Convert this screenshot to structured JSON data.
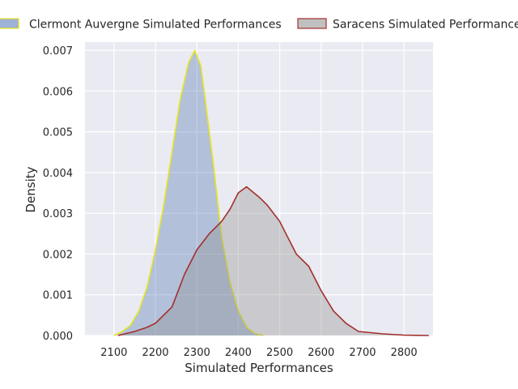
{
  "chart_data": {
    "type": "area",
    "title": "",
    "xlabel": "Simulated Performances",
    "ylabel": "Density",
    "xlim": [
      2030,
      2870
    ],
    "ylim": [
      0,
      0.0072
    ],
    "x_ticks": [
      2100,
      2200,
      2300,
      2400,
      2500,
      2600,
      2700,
      2800
    ],
    "x_tick_labels": [
      "2100",
      "2200",
      "2300",
      "2400",
      "2500",
      "2600",
      "2700",
      "2800"
    ],
    "y_ticks": [
      0,
      0.001,
      0.002,
      0.003,
      0.004,
      0.005,
      0.006,
      0.007
    ],
    "y_tick_labels": [
      "0.000",
      "0.001",
      "0.002",
      "0.003",
      "0.004",
      "0.005",
      "0.006",
      "0.007"
    ],
    "grid": true,
    "legend_position": "top",
    "series": [
      {
        "name": "Clermont Auvergne Simulated Performances",
        "fill_color": "#4c72b0",
        "line_color": "#e6e621",
        "points": [
          [
            2100,
            0.0
          ],
          [
            2120,
            0.0001
          ],
          [
            2140,
            0.00025
          ],
          [
            2160,
            0.0006
          ],
          [
            2180,
            0.0012
          ],
          [
            2200,
            0.0021
          ],
          [
            2220,
            0.0032
          ],
          [
            2240,
            0.0045
          ],
          [
            2260,
            0.0058
          ],
          [
            2280,
            0.0067
          ],
          [
            2295,
            0.007
          ],
          [
            2310,
            0.0066
          ],
          [
            2320,
            0.0058
          ],
          [
            2340,
            0.0042
          ],
          [
            2360,
            0.0024
          ],
          [
            2380,
            0.0013
          ],
          [
            2400,
            0.0006
          ],
          [
            2420,
            0.0002
          ],
          [
            2440,
            5e-05
          ],
          [
            2460,
            0.0
          ]
        ]
      },
      {
        "name": "Saracens Simulated Performances",
        "fill_color": "#8c8c8c",
        "line_color": "#a2302a",
        "points": [
          [
            2110,
            0.0
          ],
          [
            2150,
            0.0001
          ],
          [
            2180,
            0.0002
          ],
          [
            2200,
            0.0003
          ],
          [
            2240,
            0.0007
          ],
          [
            2270,
            0.0015
          ],
          [
            2300,
            0.0021
          ],
          [
            2330,
            0.0025
          ],
          [
            2360,
            0.0028
          ],
          [
            2380,
            0.0031
          ],
          [
            2400,
            0.0035
          ],
          [
            2420,
            0.00365
          ],
          [
            2450,
            0.0034
          ],
          [
            2470,
            0.0032
          ],
          [
            2500,
            0.0028
          ],
          [
            2520,
            0.0024
          ],
          [
            2540,
            0.002
          ],
          [
            2570,
            0.0017
          ],
          [
            2600,
            0.0011
          ],
          [
            2630,
            0.0006
          ],
          [
            2660,
            0.0003
          ],
          [
            2690,
            0.0001
          ],
          [
            2720,
            7e-05
          ],
          [
            2750,
            4e-05
          ],
          [
            2800,
            1e-05
          ],
          [
            2860,
            0.0
          ]
        ]
      }
    ]
  }
}
